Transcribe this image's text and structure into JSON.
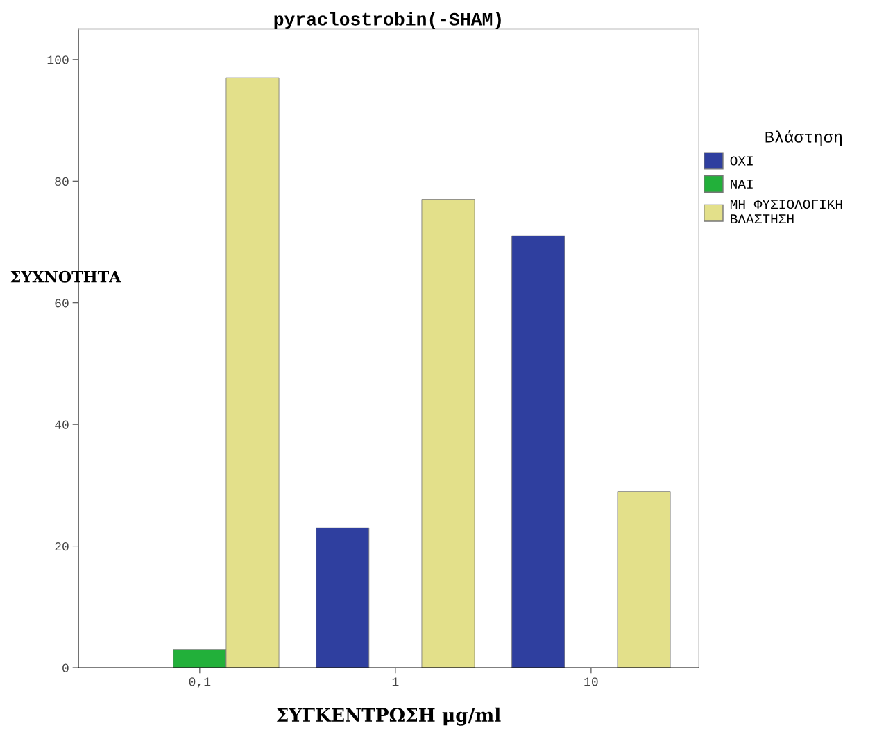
{
  "chart_data": {
    "type": "bar",
    "title": "pyraclostrobin(-SHAM)",
    "xlabel": "ΣΥΓΚΕΝΤΡΩΣΗ μg/ml",
    "ylabel": "ΣΥΧΝΟΤΗΤΑ",
    "legend_title": "Βλάστηση",
    "categories": [
      "0,1",
      "1",
      "10"
    ],
    "series": [
      {
        "name": "ΟΧΙ",
        "color": "#2f3f9f",
        "values": [
          0,
          23,
          71
        ]
      },
      {
        "name": "ΝΑΙ",
        "color": "#22b03a",
        "values": [
          3,
          0,
          0
        ]
      },
      {
        "name": "ΜΗ ΦΥΣΙΟΛΟΓΙΚΗ\nΒΛΑΣΤΗΣΗ",
        "color": "#e3e08a",
        "values": [
          97,
          77,
          29
        ]
      }
    ],
    "ylim": [
      0,
      105
    ],
    "yticks": [
      0,
      20,
      40,
      60,
      80,
      100
    ],
    "grid": false,
    "legend": "right"
  }
}
